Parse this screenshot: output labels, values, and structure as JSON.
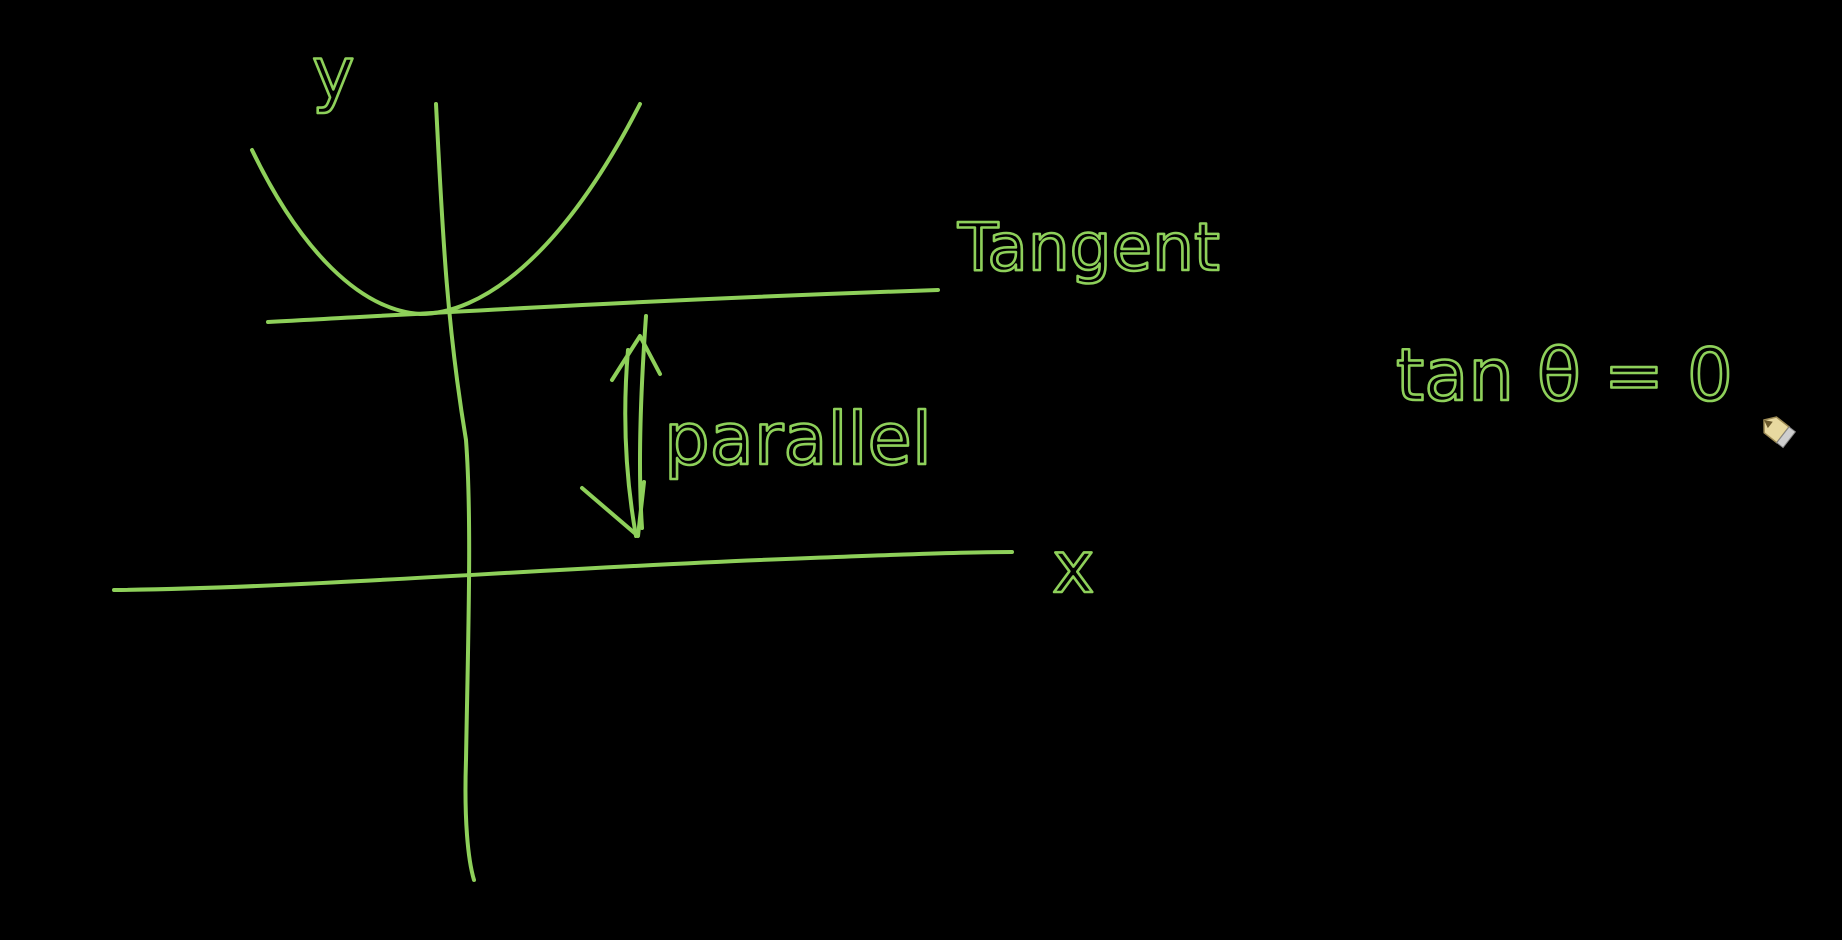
{
  "colors": {
    "background": "#000000",
    "ink": "#8ed05a"
  },
  "labels": {
    "y_axis": "y",
    "x_axis": "x",
    "tangent": "Tangent",
    "parallel": "parallel",
    "equation": "tan θ = 0"
  },
  "cursor": {
    "icon": "pen-cursor-icon"
  }
}
